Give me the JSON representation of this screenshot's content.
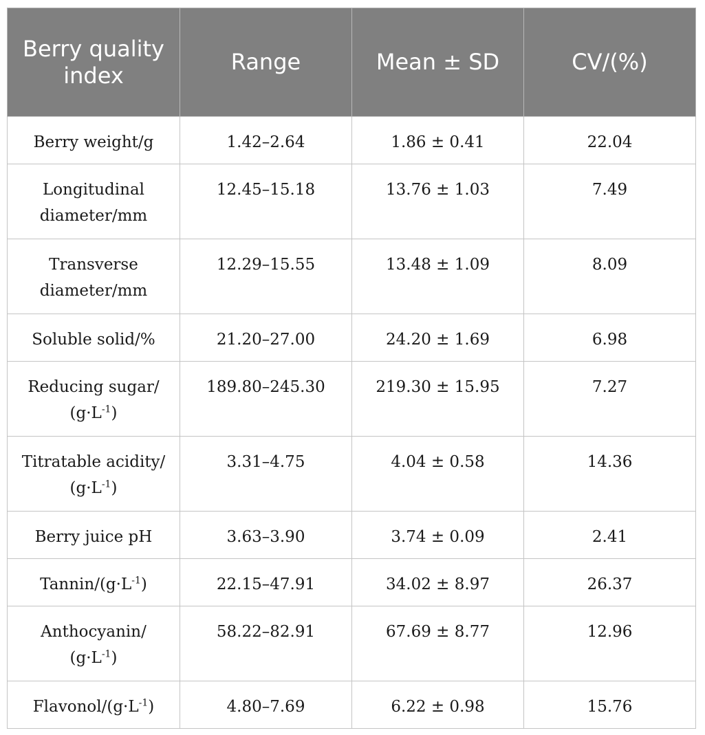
{
  "header": {
    "col_index": "Berry quality index",
    "col_range": "Range",
    "col_mean": "Mean ± SD",
    "col_cv": "CV/(%)"
  },
  "rows": [
    {
      "index_line1": "Berry weight/g",
      "index_line2": "",
      "range": "1.42–2.64",
      "mean": "1.86 ± 0.41",
      "cv": "22.04"
    },
    {
      "index_line1": "Longitudinal",
      "index_line2": "diameter/mm",
      "range": "12.45–15.18",
      "mean": "13.76 ± 1.03",
      "cv": "7.49"
    },
    {
      "index_line1": "Transverse",
      "index_line2": "diameter/mm",
      "range": "12.29–15.55",
      "mean": "13.48 ± 1.09",
      "cv": "8.09"
    },
    {
      "index_line1": "Soluble solid/%",
      "index_line2": "",
      "range": "21.20–27.00",
      "mean": "24.20 ± 1.69",
      "cv": "6.98"
    },
    {
      "index_line1": "Reducing sugar/",
      "unit_prefix": "(g·L",
      "unit_sup": "-1",
      "unit_suffix": ")",
      "range": "189.80–245.30",
      "mean": "219.30 ± 15.95",
      "cv": "7.27"
    },
    {
      "index_line1": "Titratable acidity/",
      "unit_prefix": "(g·L",
      "unit_sup": "-1",
      "unit_suffix": ")",
      "range": "3.31–4.75",
      "mean": "4.04 ± 0.58",
      "cv": "14.36"
    },
    {
      "index_line1": "Berry juice pH",
      "index_line2": "",
      "range": "3.63–3.90",
      "mean": "3.74 ± 0.09",
      "cv": "2.41"
    },
    {
      "index_prefix": "Tannin/(g·L",
      "unit_sup": "-1",
      "unit_suffix": ")",
      "range": "22.15–47.91",
      "mean": "34.02 ± 8.97",
      "cv": "26.37"
    },
    {
      "index_line1": "Anthocyanin/",
      "unit_prefix": "(g·L",
      "unit_sup": "-1",
      "unit_suffix": ")",
      "range": "58.22–82.91",
      "mean": "67.69 ± 8.77",
      "cv": "12.96"
    },
    {
      "index_prefix": "Flavonol/(g·L",
      "unit_sup": "-1",
      "unit_suffix": ")",
      "range": "4.80–7.69",
      "mean": "6.22 ± 0.98",
      "cv": "15.76"
    }
  ]
}
